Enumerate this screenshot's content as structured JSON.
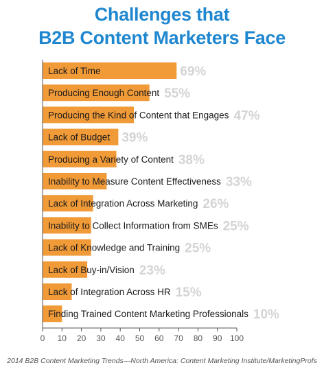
{
  "title_line1": "Challenges that",
  "title_line2": "B2B Content Marketers Face",
  "footer": "2014 B2B Content Marketing Trends—North America: Content Marketing Institute/MarketingProfs",
  "colors": {
    "title": "#1f87cf",
    "bar": "#f19a38",
    "value_label": "#d4d4d4",
    "axis": "#555555",
    "label_text": "#1a1a1a"
  },
  "chart_data": {
    "type": "bar",
    "orientation": "horizontal",
    "categories": [
      "Lack of Time",
      "Producing Enough Content",
      "Producing the Kind of Content that Engages",
      "Lack of Budget",
      "Producing a Variety of Content",
      "Inability to Measure Content Effectiveness",
      "Lack of Integration Across Marketing",
      "Inability to Collect Information from SMEs",
      "Lack of Knowledge and Training",
      "Lack of Buy-in/Vision",
      "Lack of Integration Across HR",
      "Finding Trained Content Marketing Professionals"
    ],
    "values": [
      69,
      55,
      47,
      39,
      38,
      33,
      26,
      25,
      25,
      23,
      15,
      10
    ],
    "value_labels": [
      "69%",
      "55%",
      "47%",
      "39%",
      "38%",
      "33%",
      "26%",
      "25%",
      "25%",
      "23%",
      "15%",
      "10%"
    ],
    "xlim": [
      0,
      100
    ],
    "xticks": [
      0,
      10,
      20,
      30,
      40,
      50,
      60,
      70,
      80,
      90,
      100
    ],
    "xtick_labels": [
      "0",
      "10",
      "20",
      "30",
      "40",
      "50",
      "60",
      "70",
      "80",
      "90",
      "100"
    ],
    "grid": false
  }
}
